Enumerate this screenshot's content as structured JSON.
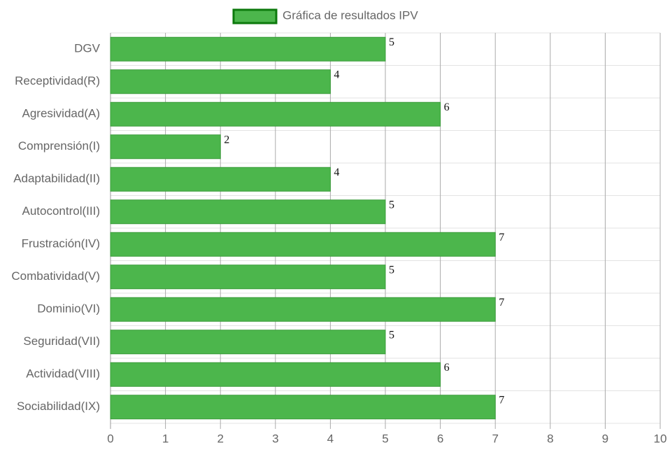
{
  "chart_data": {
    "type": "bar",
    "orientation": "horizontal",
    "categories": [
      "DGV",
      "Receptividad(R)",
      "Agresividad(A)",
      "Comprensión(I)",
      "Adaptabilidad(II)",
      "Autocontrol(III)",
      "Frustración(IV)",
      "Combatividad(V)",
      "Dominio(VI)",
      "Seguridad(VII)",
      "Actividad(VIII)",
      "Sociabilidad(IX)"
    ],
    "series": [
      {
        "name": "Gráfica de resultados IPV",
        "color": "#4cb64c",
        "values": [
          5,
          4,
          6,
          2,
          4,
          5,
          7,
          5,
          7,
          5,
          6,
          7
        ]
      }
    ],
    "xlim": [
      0,
      10
    ],
    "xticks": [
      0,
      1,
      2,
      3,
      4,
      5,
      6,
      7,
      8,
      9,
      10
    ],
    "grid": true,
    "legend": "top"
  }
}
